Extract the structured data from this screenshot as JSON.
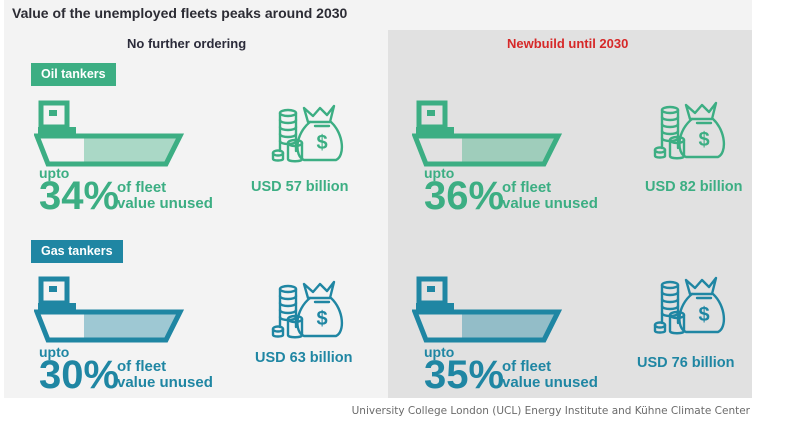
{
  "title": "Value of the unemployed fleets peaks around 2030",
  "scenarios": [
    {
      "label": "No further ordering",
      "color": "#2b2b3a"
    },
    {
      "label": "Newbuild until 2030",
      "color": "#d62828"
    }
  ],
  "oil": {
    "tag": "Oil tankers",
    "color": "#3cae83",
    "no_further": {
      "upto": "upto",
      "percent": "34%",
      "line1": "of fleet",
      "line2": "value unused",
      "usd": "USD 57 billion"
    },
    "newbuild": {
      "upto": "upto",
      "percent": "36%",
      "line1": "of fleet",
      "line2": "value unused",
      "usd": "USD 82 billion"
    }
  },
  "gas": {
    "tag": "Gas tankers",
    "color": "#1f86a3",
    "no_further": {
      "upto": "upto",
      "percent": "30%",
      "line1": "of fleet",
      "line2": "value unused",
      "usd": "USD 63 billion"
    },
    "newbuild": {
      "upto": "upto",
      "percent": "35%",
      "line1": "of fleet",
      "line2": "value unused",
      "usd": "USD 76 billion"
    }
  },
  "icons": [
    "tanker-ship-icon",
    "money-bag-icon",
    "coin-stack-icon"
  ],
  "source": "University College London (UCL) Energy Institute and Kühne Climate Center"
}
